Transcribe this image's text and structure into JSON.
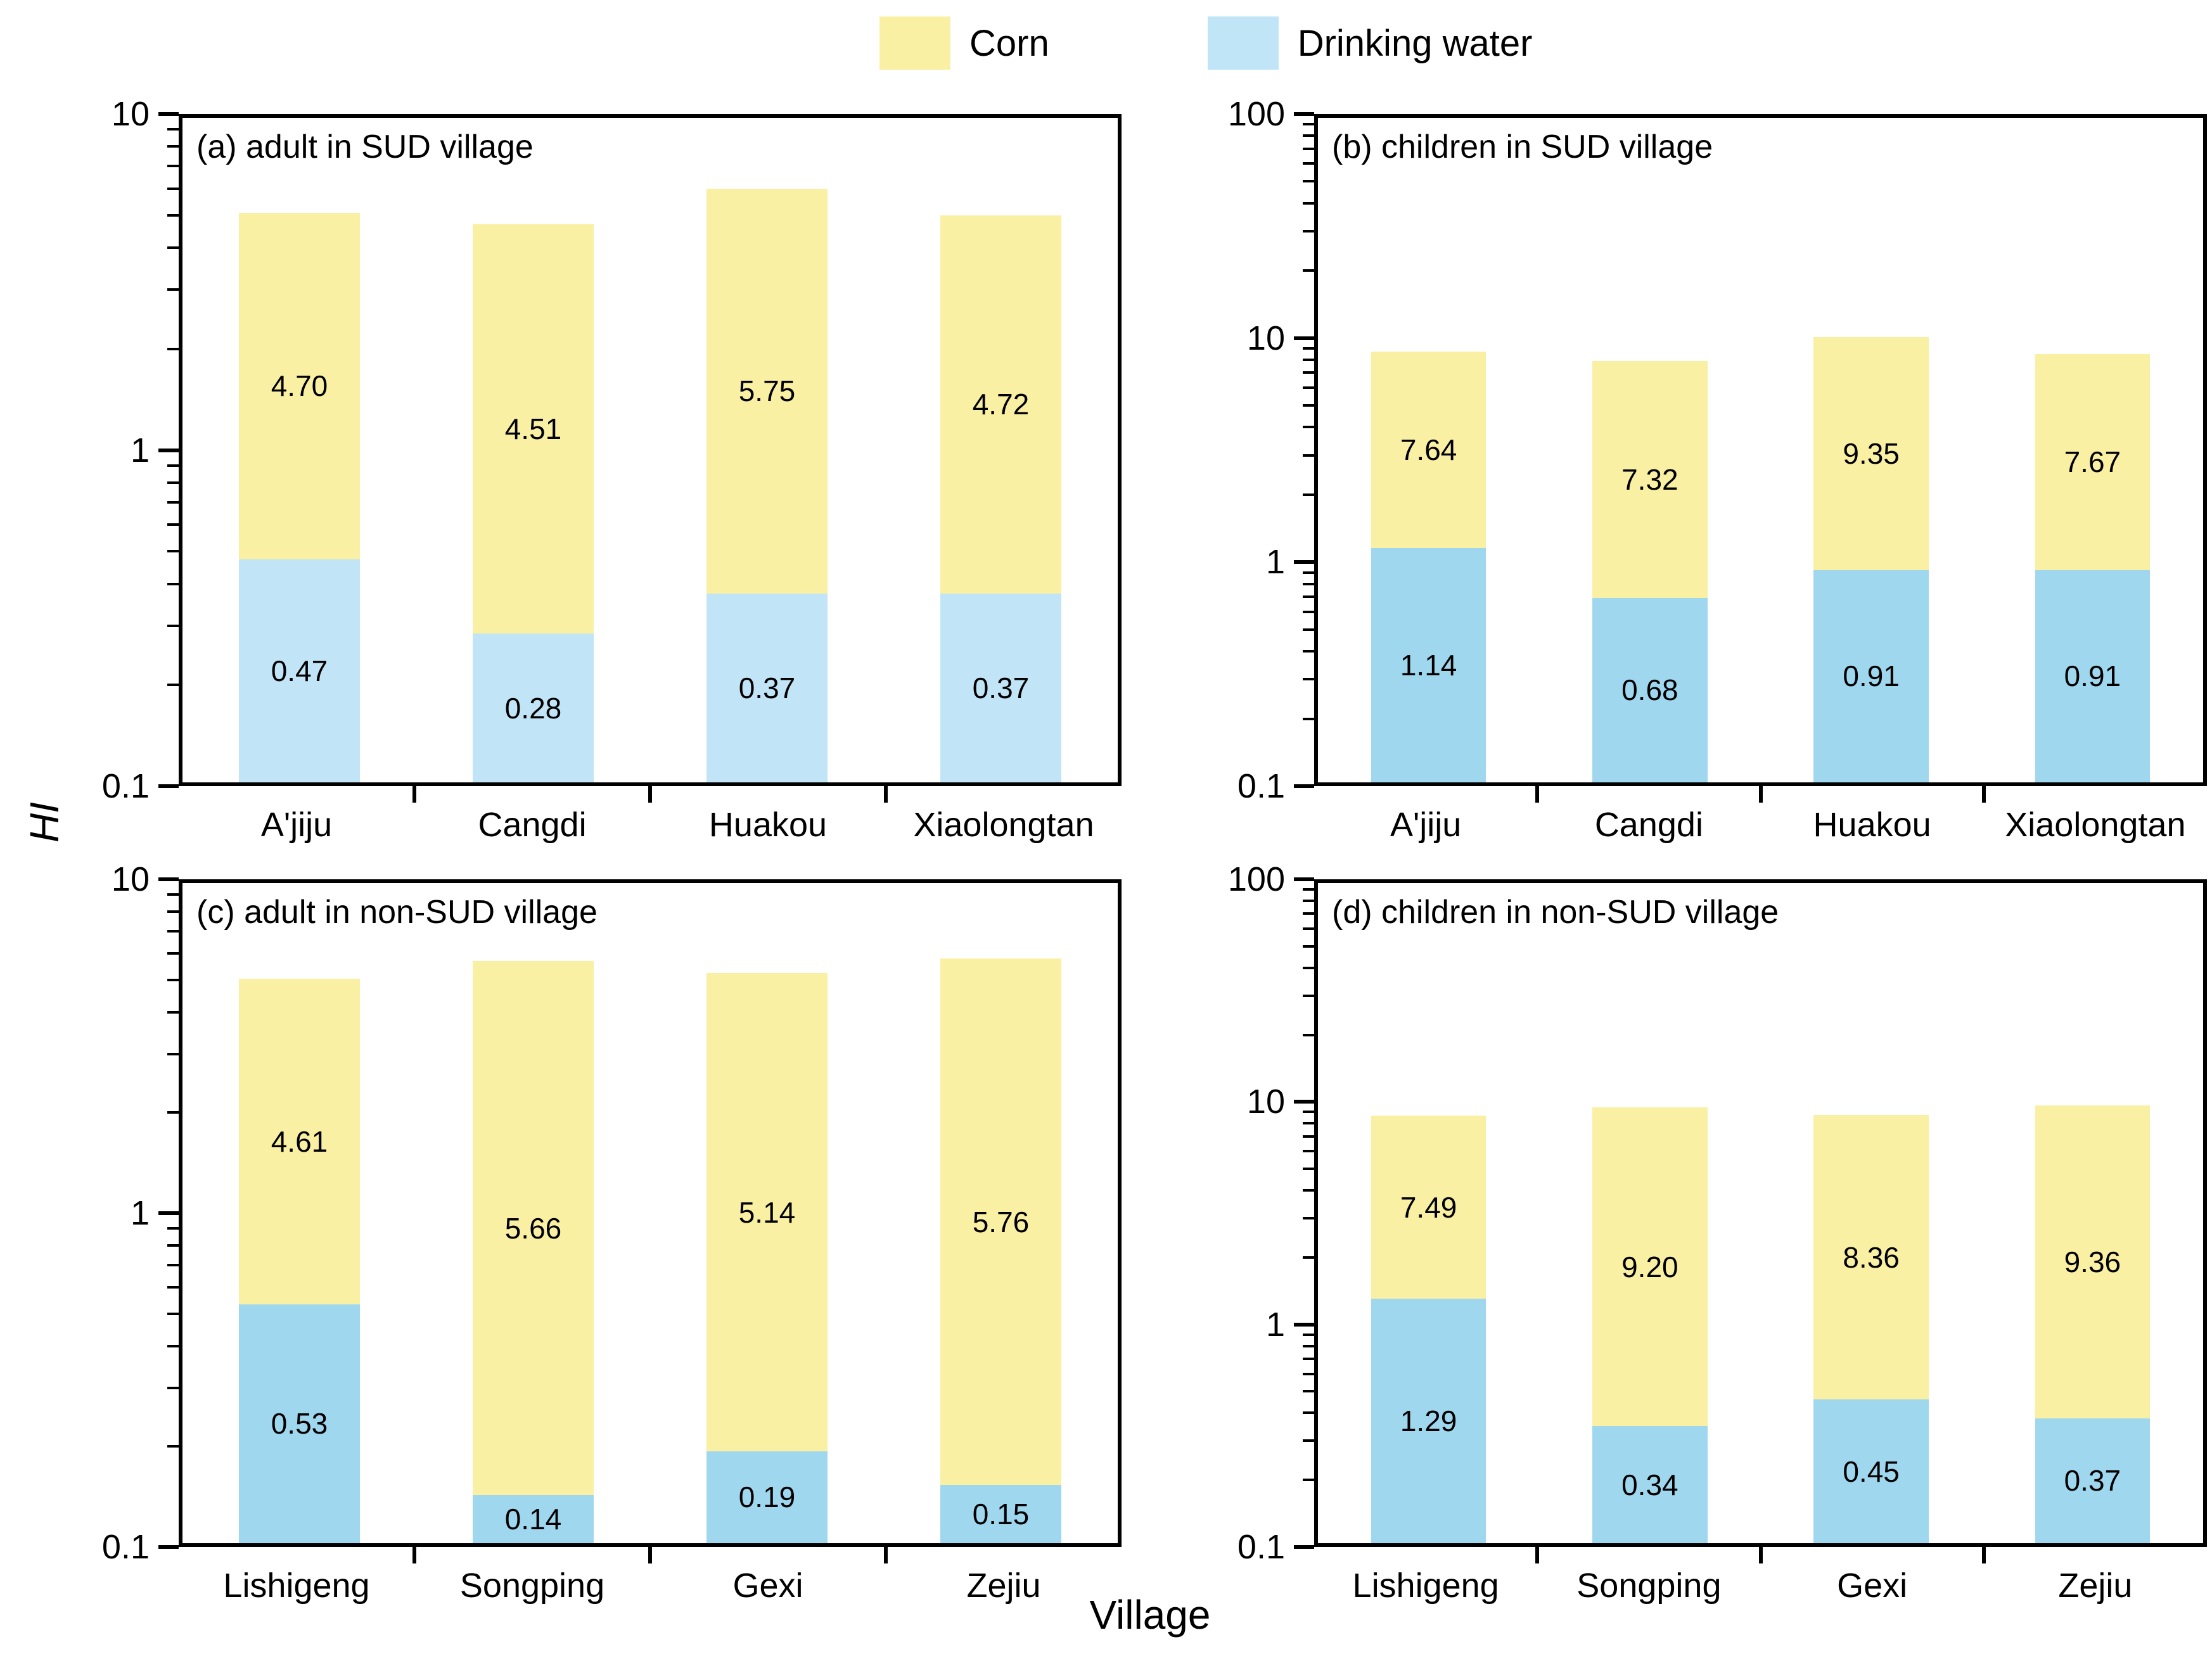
{
  "legend": {
    "items": [
      {
        "label": "Corn",
        "color": "#FAF0A3"
      },
      {
        "label": "Drinking water",
        "color": "#BFE5F6"
      }
    ]
  },
  "axes": {
    "y_label": "HI",
    "x_label": "Village"
  },
  "chart_data": [
    {
      "type": "bar",
      "panel": "a",
      "title": "(a) adult in SUD village",
      "stacked": true,
      "log_scale": true,
      "ylim": [
        0.1,
        10
      ],
      "yticks": [
        "10",
        "1",
        "0.1"
      ],
      "grid": false,
      "categories": [
        "A'jiju",
        "Cangdi",
        "Huakou",
        "Xiaolongtan"
      ],
      "series": [
        {
          "name": "Drinking water",
          "color": "#C1E5F6",
          "values": [
            0.47,
            0.28,
            0.37,
            0.37
          ]
        },
        {
          "name": "Corn",
          "color": "#FAF0A3",
          "values": [
            4.7,
            4.51,
            5.75,
            4.72
          ]
        }
      ]
    },
    {
      "type": "bar",
      "panel": "b",
      "title": "(b) children in SUD village",
      "stacked": true,
      "log_scale": true,
      "ylim": [
        0.1,
        100
      ],
      "yticks": [
        "100",
        "10",
        "1",
        "0.1"
      ],
      "grid": false,
      "categories": [
        "A'jiju",
        "Cangdi",
        "Huakou",
        "Xiaolongtan"
      ],
      "series": [
        {
          "name": "Drinking water",
          "color": "#9FD7EF",
          "values": [
            1.14,
            0.68,
            0.91,
            0.91
          ]
        },
        {
          "name": "Corn",
          "color": "#FAF0A3",
          "values": [
            7.64,
            7.32,
            9.35,
            7.67
          ]
        }
      ]
    },
    {
      "type": "bar",
      "panel": "c",
      "title": "(c) adult in non-SUD village",
      "stacked": true,
      "log_scale": true,
      "ylim": [
        0.1,
        10
      ],
      "yticks": [
        "10",
        "1",
        "0.1"
      ],
      "grid": false,
      "categories": [
        "Lishigeng",
        "Songping",
        "Gexi",
        "Zejiu"
      ],
      "series": [
        {
          "name": "Drinking water",
          "color": "#9FD7EF",
          "values": [
            0.53,
            0.14,
            0.19,
            0.15
          ]
        },
        {
          "name": "Corn",
          "color": "#FAF0A3",
          "values": [
            4.61,
            5.66,
            5.14,
            5.76
          ]
        }
      ]
    },
    {
      "type": "bar",
      "panel": "d",
      "title": "(d) children in non-SUD village",
      "stacked": true,
      "log_scale": true,
      "ylim": [
        0.1,
        100
      ],
      "yticks": [
        "100",
        "10",
        "1",
        "0.1"
      ],
      "grid": false,
      "categories": [
        "Lishigeng",
        "Songping",
        "Gexi",
        "Zejiu"
      ],
      "series": [
        {
          "name": "Drinking water",
          "color": "#9FD7EF",
          "values": [
            1.29,
            0.34,
            0.45,
            0.37
          ]
        },
        {
          "name": "Corn",
          "color": "#FAF0A3",
          "values": [
            7.49,
            9.2,
            8.36,
            9.36
          ]
        }
      ]
    }
  ]
}
